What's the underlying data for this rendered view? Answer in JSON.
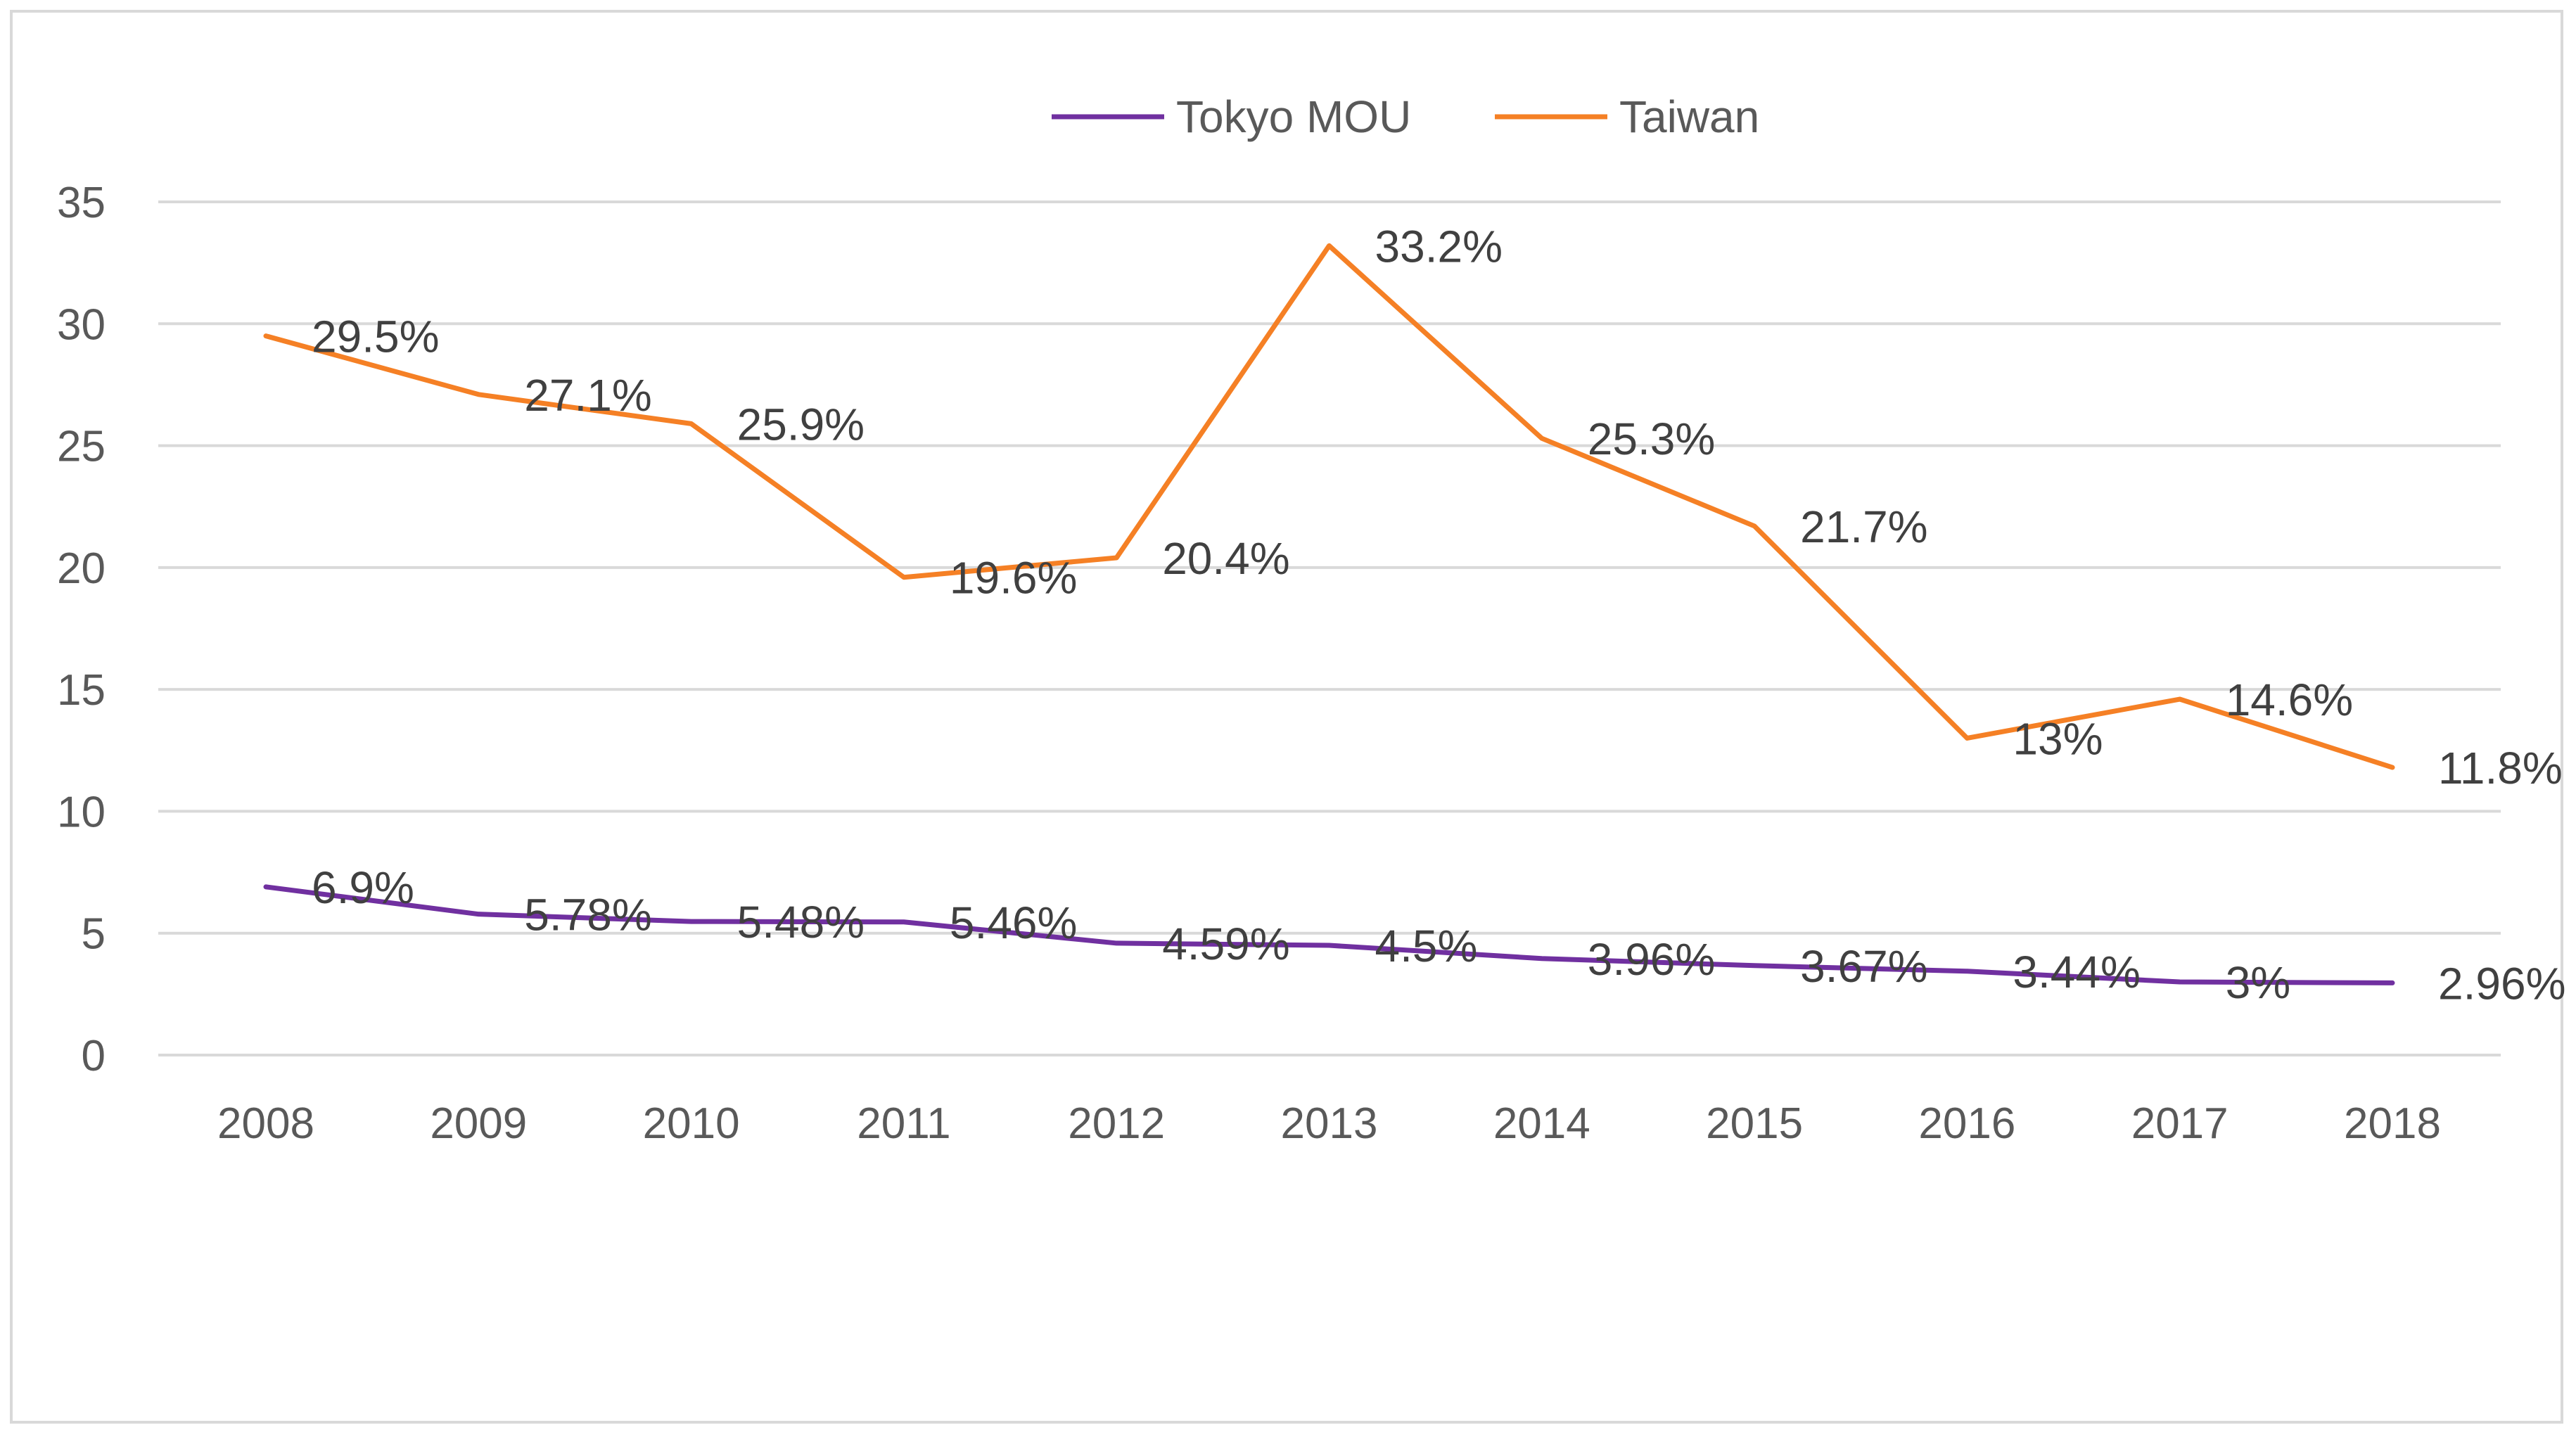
{
  "chart_data": {
    "type": "line",
    "title": "",
    "xlabel": "",
    "ylabel": "",
    "x": [
      "2008",
      "2009",
      "2010",
      "2011",
      "2012",
      "2013",
      "2014",
      "2015",
      "2016",
      "2017",
      "2018"
    ],
    "ylim": [
      0,
      35
    ],
    "yticks": [
      0,
      5,
      10,
      15,
      20,
      25,
      30,
      35
    ],
    "grid": true,
    "legend_position": "top",
    "series": [
      {
        "name": "Tokyo MOU",
        "color": "#7030A0",
        "values": [
          6.9,
          5.78,
          5.48,
          5.46,
          4.59,
          4.5,
          3.96,
          3.67,
          3.44,
          3.0,
          2.96
        ],
        "labels": [
          "6.9%",
          "5.78%",
          "5.48%",
          "5.46%",
          "4.59%",
          "4.5%",
          "3.96%",
          "3.67%",
          "3.44%",
          "3%",
          "2.96%"
        ]
      },
      {
        "name": "Taiwan",
        "color": "#F58025",
        "values": [
          29.5,
          27.1,
          25.9,
          19.6,
          20.4,
          33.2,
          25.3,
          21.7,
          13.0,
          14.6,
          11.8
        ],
        "labels": [
          "29.5%",
          "27.1%",
          "25.9%",
          "19.6%",
          "20.4%",
          "33.2%",
          "25.3%",
          "21.7%",
          "13%",
          "14.6%",
          "11.8%"
        ]
      }
    ]
  }
}
